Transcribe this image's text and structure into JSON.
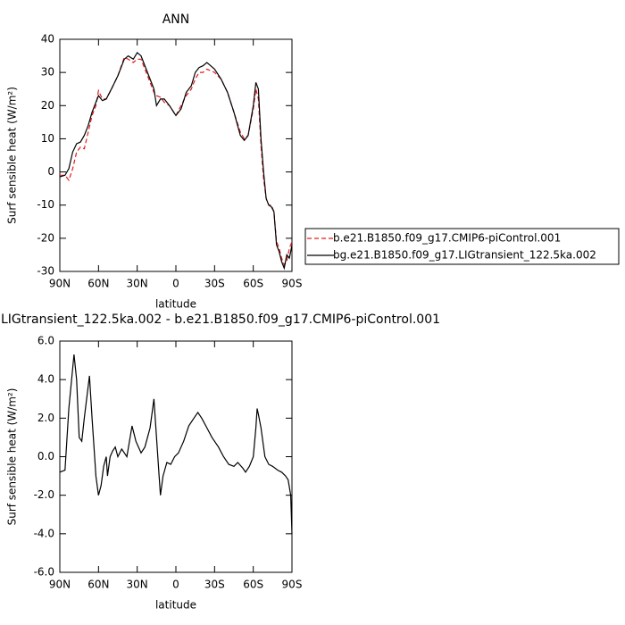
{
  "chart_data": [
    {
      "type": "line",
      "title": "ANN",
      "xlabel": "latitude",
      "ylabel": "Surf sensible heat (W/m²)",
      "x": [
        90,
        86,
        83,
        80,
        77,
        74,
        71,
        68,
        65,
        62,
        60,
        57,
        54,
        50,
        45,
        40,
        37,
        33,
        30,
        27,
        24,
        20,
        17,
        15,
        12,
        9,
        5,
        0,
        -4,
        -8,
        -12,
        -15,
        -18,
        -21,
        -24,
        -27,
        -30,
        -35,
        -40,
        -45,
        -50,
        -53,
        -56,
        -60,
        -62,
        -64,
        -66,
        -68,
        -70,
        -72,
        -74,
        -76,
        -78,
        -80,
        -82,
        -84,
        -86,
        -88,
        -89,
        -90
      ],
      "series": [
        {
          "name": "b.e21.B1850.f09_g17.CMIP6-piControl.001",
          "color": "#e41a1c",
          "dashed": true,
          "values": [
            -1,
            -1,
            -2.5,
            1,
            6,
            7.5,
            7,
            12,
            17,
            20,
            24.5,
            22,
            22,
            25,
            29,
            34.5,
            34,
            33,
            34,
            34,
            31,
            27,
            24,
            23,
            22.5,
            21,
            20,
            17,
            20,
            23,
            25,
            28,
            30,
            30,
            31,
            30.5,
            30,
            28,
            24,
            18,
            12,
            10,
            11,
            19,
            25,
            22,
            8,
            -2,
            -8,
            -10,
            -10,
            -12,
            -21,
            -23,
            -26,
            -28,
            -27,
            -23,
            -22,
            -21
          ]
        },
        {
          "name": "bg.e21.B1850.f09_g17.LIGtransient_122.5ka.002",
          "color": "#000000",
          "dashed": false,
          "values": [
            -1.5,
            -1,
            1,
            6,
            8.5,
            9,
            11,
            14,
            18,
            21,
            23,
            21.5,
            22,
            25,
            29,
            34,
            35,
            34,
            36,
            35,
            32,
            28,
            25,
            20,
            22,
            22,
            20,
            17,
            19,
            24,
            26,
            30,
            31.5,
            32,
            33,
            32,
            31,
            28,
            24,
            18,
            11,
            9.5,
            11,
            20,
            27,
            25,
            10,
            0,
            -8,
            -10,
            -10.5,
            -12,
            -22,
            -24,
            -27,
            -29,
            -25,
            -26,
            -24,
            -22
          ]
        }
      ],
      "xlim": [
        90,
        -90
      ],
      "xticks": [
        {
          "value": 90,
          "label": "90N"
        },
        {
          "value": 60,
          "label": "60N"
        },
        {
          "value": 30,
          "label": "30N"
        },
        0,
        {
          "value": -30,
          "label": "30S"
        },
        {
          "value": -60,
          "label": "60S"
        },
        {
          "value": -90,
          "label": "90S"
        }
      ],
      "ylim": [
        -30,
        40
      ],
      "yticks": [
        -30,
        -20,
        -10,
        0,
        10,
        20,
        30,
        40
      ],
      "legend": "right"
    },
    {
      "type": "line",
      "title": "LIGtransient_122.5ka.002 - b.e21.B1850.f09_g17.CMIP6-piControl.001",
      "xlabel": "latitude",
      "ylabel": "Surf sensible heat (W/m²)",
      "x": [
        90,
        86,
        83,
        79,
        77,
        75,
        73,
        71,
        67,
        65,
        63,
        62,
        60,
        58,
        56,
        54,
        53,
        51,
        49,
        47,
        45,
        42,
        38,
        34,
        31,
        27,
        24,
        20,
        17,
        15,
        13,
        12,
        10,
        7,
        4,
        1,
        -2,
        -6,
        -10,
        -14,
        -17,
        -20,
        -24,
        -28,
        -33,
        -37,
        -41,
        -45,
        -48,
        -52,
        -54,
        -57,
        -60,
        -62,
        -63,
        -64,
        -66,
        -69,
        -72,
        -75,
        -79,
        -82,
        -85,
        -87,
        -89,
        -90
      ],
      "series": [
        {
          "color": "#000000",
          "dashed": false,
          "values": [
            -0.8,
            -0.7,
            2.5,
            5.3,
            4,
            1,
            0.8,
            2,
            4.2,
            2,
            0,
            -1,
            -2,
            -1.5,
            -0.5,
            0,
            -1,
            0,
            0.3,
            0.5,
            0,
            0.4,
            0,
            1.6,
            0.8,
            0.2,
            0.5,
            1.5,
            3,
            1,
            -1,
            -2,
            -1,
            -0.3,
            -0.4,
            0,
            0.2,
            0.8,
            1.6,
            2,
            2.3,
            2,
            1.5,
            1,
            0.5,
            0,
            -0.4,
            -0.5,
            -0.3,
            -0.6,
            -0.8,
            -0.5,
            0,
            1.5,
            2.5,
            2.2,
            1.5,
            0,
            -0.4,
            -0.5,
            -0.7,
            -0.8,
            -1,
            -1.2,
            -2,
            -4
          ]
        }
      ],
      "xlim": [
        90,
        -90
      ],
      "xticks": [
        {
          "value": 90,
          "label": "90N"
        },
        {
          "value": 60,
          "label": "60N"
        },
        {
          "value": 30,
          "label": "30N"
        },
        0,
        {
          "value": -30,
          "label": "30S"
        },
        {
          "value": -60,
          "label": "60S"
        },
        {
          "value": -90,
          "label": "90S"
        }
      ],
      "ylim": [
        -6,
        6
      ],
      "yticks": [
        {
          "value": -6,
          "label": "-6.0"
        },
        {
          "value": -4,
          "label": "-4.0"
        },
        {
          "value": -2,
          "label": "-2.0"
        },
        {
          "value": 0,
          "label": "0.0"
        },
        {
          "value": 2,
          "label": "2.0"
        },
        {
          "value": 4,
          "label": "4.0"
        },
        {
          "value": 6,
          "label": "6.0"
        }
      ]
    }
  ]
}
